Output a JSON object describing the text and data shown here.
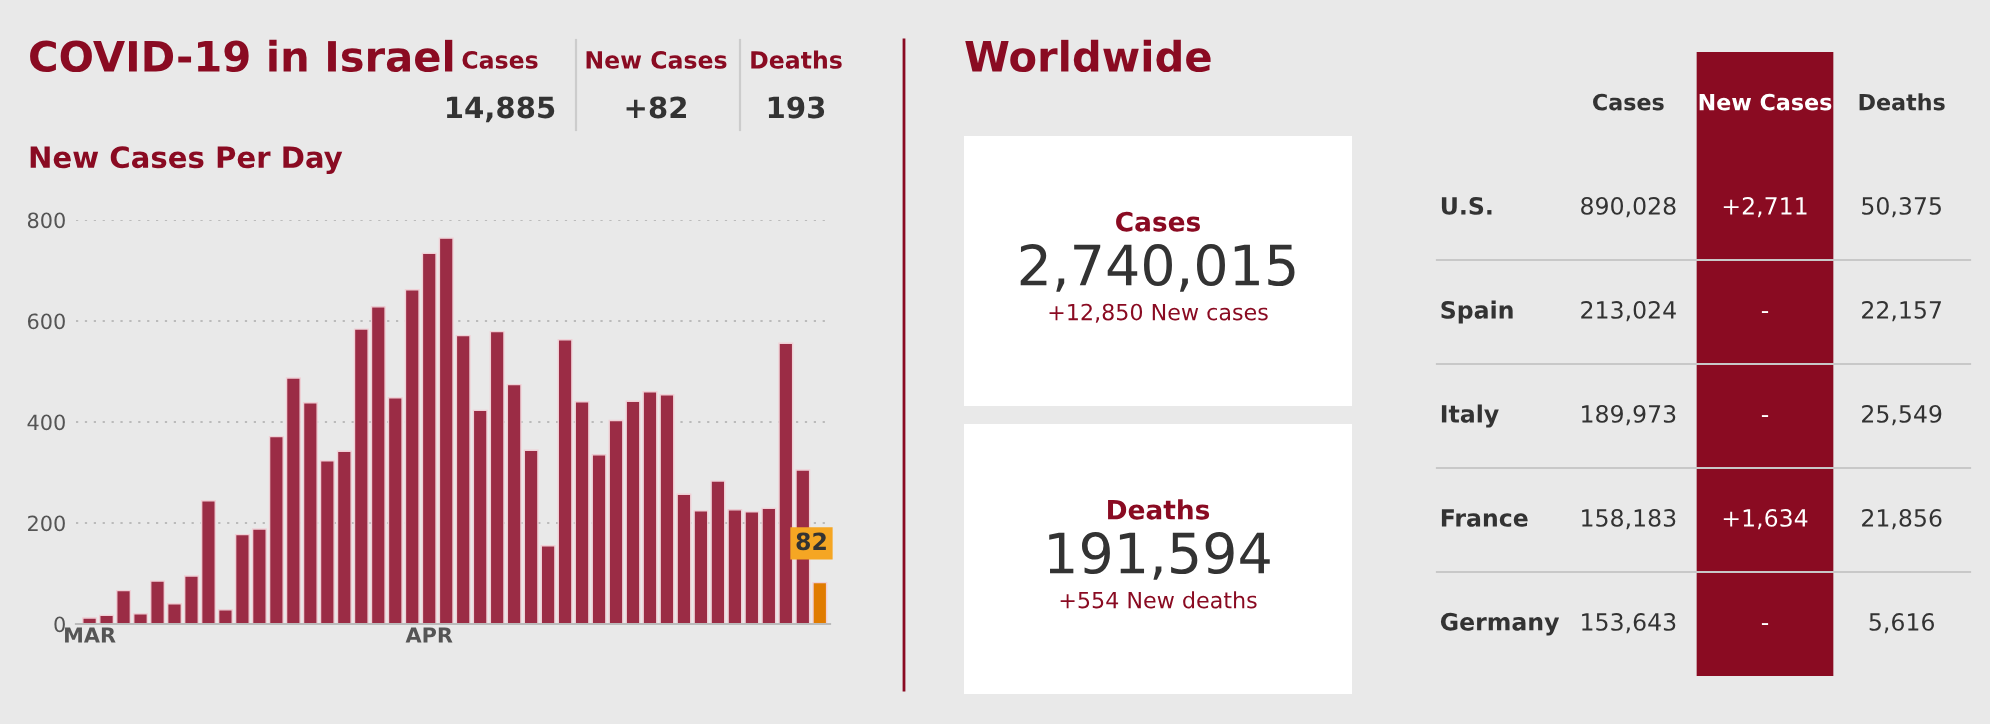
{
  "chart_data": [
    {
      "type": "other",
      "title": "COVID-19 in Israel",
      "categories": [
        "Cases",
        "New Cases",
        "Deaths"
      ],
      "value_labels": [
        "14,885",
        "+82",
        "193"
      ]
    },
    {
      "type": "bar",
      "title": "New Cases Per Day",
      "categories": [
        "MAR",
        null,
        null,
        null,
        null,
        null,
        null,
        null,
        null,
        null,
        null,
        null,
        null,
        null,
        null,
        null,
        null,
        null,
        null,
        null,
        "APR",
        null,
        null,
        null,
        null,
        null,
        null,
        null,
        null,
        null,
        null,
        null,
        null,
        null,
        null,
        null,
        null,
        null,
        null,
        null,
        null,
        null,
        null,
        null
      ],
      "values": [
        12,
        17,
        66,
        20,
        85,
        40,
        95,
        244,
        28,
        177,
        188,
        371,
        487,
        438,
        323,
        342,
        584,
        628,
        448,
        662,
        734,
        764,
        571,
        423,
        579,
        474,
        344,
        155,
        563,
        440,
        335,
        403,
        441,
        460,
        454,
        257,
        224,
        283,
        226,
        222,
        229,
        556,
        305,
        82
      ],
      "colors": [
        "#9b2c45",
        "#9b2c45",
        "#9b2c45",
        "#9b2c45",
        "#9b2c45",
        "#9b2c45",
        "#9b2c45",
        "#9b2c45",
        "#9b2c45",
        "#9b2c45",
        "#9b2c45",
        "#9b2c45",
        "#9b2c45",
        "#9b2c45",
        "#9b2c45",
        "#9b2c45",
        "#9b2c45",
        "#9b2c45",
        "#9b2c45",
        "#9b2c45",
        "#9b2c45",
        "#9b2c45",
        "#9b2c45",
        "#9b2c45",
        "#9b2c45",
        "#9b2c45",
        "#9b2c45",
        "#9b2c45",
        "#9b2c45",
        "#9b2c45",
        "#9b2c45",
        "#9b2c45",
        "#9b2c45",
        "#9b2c45",
        "#9b2c45",
        "#9b2c45",
        "#9b2c45",
        "#9b2c45",
        "#9b2c45",
        "#9b2c45",
        "#9b2c45",
        "#9b2c45",
        "#9b2c45",
        "#e07b00"
      ],
      "value_labels": [
        null,
        null,
        null,
        null,
        null,
        null,
        null,
        null,
        null,
        null,
        null,
        null,
        null,
        null,
        null,
        null,
        null,
        null,
        null,
        null,
        null,
        null,
        null,
        null,
        null,
        null,
        null,
        null,
        null,
        null,
        null,
        null,
        null,
        null,
        null,
        null,
        null,
        null,
        null,
        null,
        null,
        null,
        null,
        "82"
      ],
      "ylim": [
        0,
        800
      ],
      "yticks": [
        0,
        200,
        400,
        600,
        800
      ],
      "grid": "y",
      "legend": false
    },
    {
      "type": "other",
      "title": "Worldwide",
      "categories": [
        "Cases",
        "Deaths"
      ],
      "value_labels": [
        "2,740,015",
        "191,594"
      ],
      "annotations": [
        "+12,850 New cases",
        "+554 New deaths"
      ]
    },
    {
      "type": "other",
      "categories": [
        "Cases",
        "New Cases",
        "Deaths"
      ],
      "y_categories": [
        "U.S.",
        "Spain",
        "Italy",
        "France",
        "Germany"
      ],
      "cell_labels": [
        [
          "890,028",
          "+2,711",
          "50,375"
        ],
        [
          "213,024",
          "-",
          "22,157"
        ],
        [
          "189,973",
          "-",
          "25,549"
        ],
        [
          "158,183",
          "+1,634",
          "21,856"
        ],
        [
          "153,643",
          "-",
          "5,616"
        ]
      ],
      "colors": [
        null,
        "#8a0b22",
        null
      ]
    }
  ]
}
